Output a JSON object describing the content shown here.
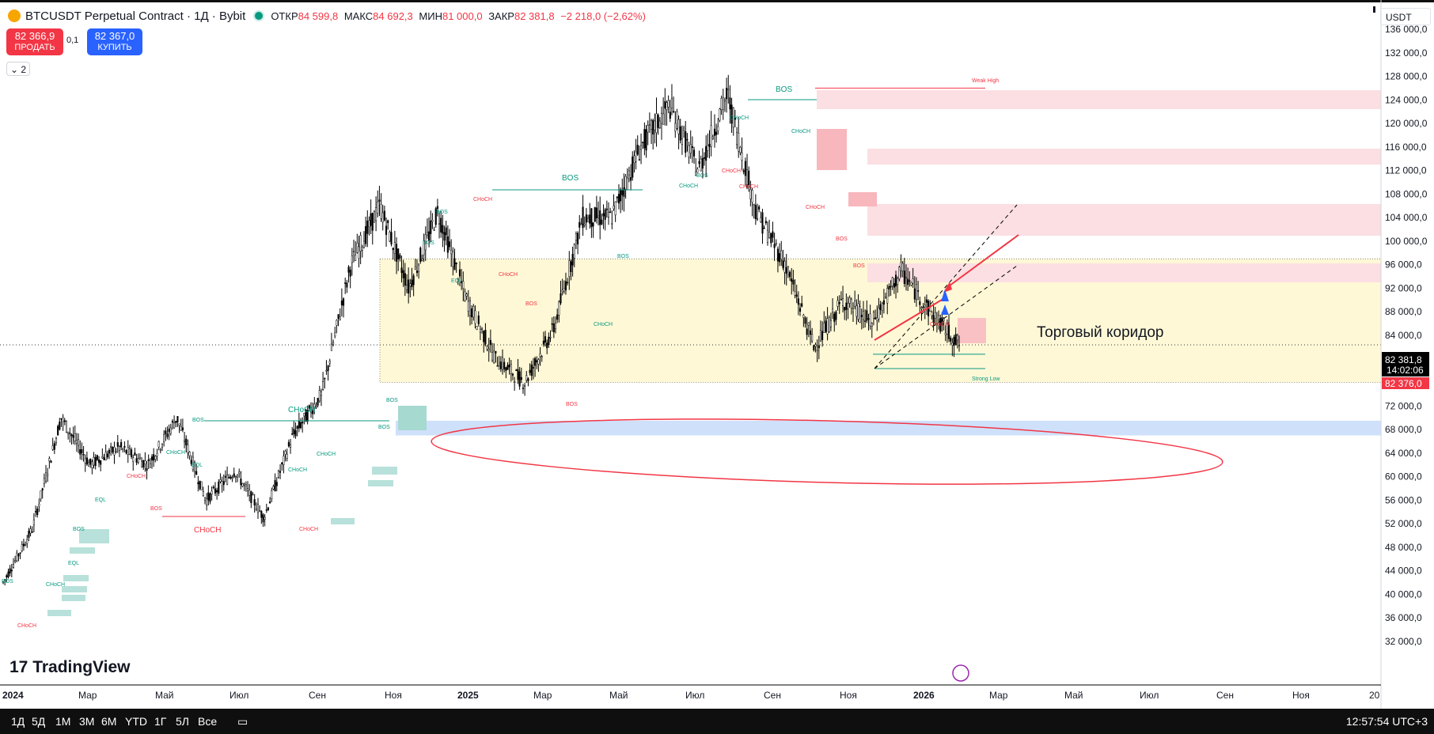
{
  "header": {
    "title": "BTCUSDT Perpetual Contract · 1Д · Bybit",
    "open_label": "ОТКР",
    "open": "84 599,8",
    "high_label": "МАКС",
    "high": "84 692,3",
    "low_label": "МИН",
    "low": "81 000,0",
    "close_label": "ЗАКР",
    "close": "82 381,8",
    "change": "−2 218,0 (−2,62%)"
  },
  "trade": {
    "sell_price": "82 366,9",
    "sell_label": "ПРОДАТЬ",
    "spread": "0,1",
    "buy_price": "82 367,0",
    "buy_label": "КУПИТЬ"
  },
  "indicators": {
    "collapse_count": "2"
  },
  "currency": "USDT",
  "brand": "TradingView",
  "colors": {
    "up": "#089981",
    "down": "#f23645",
    "accent": "#2962ff",
    "corridor": "#fff8d6",
    "supply": "#f7c2c6",
    "demand": "#9fd8ce",
    "blue_zone": "#cfe0fb"
  },
  "bottom_bar": {
    "timeframes": [
      "1Д",
      "5Д",
      "1М",
      "3М",
      "6М",
      "YTD",
      "1Г",
      "5Л",
      "Все"
    ],
    "time": "12:57:54 UTC+3"
  },
  "chart_data": {
    "type": "candlestick",
    "y_axis_labels": [
      "136 000,0",
      "132 000,0",
      "128 000,0",
      "124 000,0",
      "120 000,0",
      "116 000,0",
      "112 000,0",
      "108 000,0",
      "104 000,0",
      "100 000,0",
      "96 000,0",
      "92 000,0",
      "88 000,0",
      "84 000,0",
      "80 000,0",
      "76 000,0",
      "72 000,0",
      "68 000,0",
      "64 000,0",
      "60 000,0",
      "56 000,0",
      "52 000,0",
      "48 000,0",
      "44 000,0",
      "40 000,0",
      "36 000,0",
      "32 000,0"
    ],
    "y_axis_values": [
      136000,
      132000,
      128000,
      124000,
      120000,
      116000,
      112000,
      108000,
      104000,
      100000,
      96000,
      92000,
      88000,
      84000,
      80000,
      76000,
      72000,
      68000,
      64000,
      60000,
      56000,
      52000,
      48000,
      44000,
      40000,
      36000,
      32000
    ],
    "x_axis_labels": [
      "2024",
      "Мар",
      "Май",
      "Июл",
      "Сен",
      "Ноя",
      "2025",
      "Мар",
      "Май",
      "Июл",
      "Сен",
      "Ноя",
      "2026",
      "Мар",
      "Май",
      "Июл",
      "Сен",
      "Ноя",
      "20"
    ],
    "ylim": [
      30000,
      139000
    ],
    "last_price": {
      "label": "82 381,8",
      "countdown": "14:02:06",
      "value": 82381.8
    },
    "bid_price": {
      "label": "82 376,0",
      "value": 82376
    },
    "price_path": [
      [
        "2024-01",
        42000
      ],
      [
        "2024-02",
        51000
      ],
      [
        "2024-03",
        70000
      ],
      [
        "2024-03b",
        62000
      ],
      [
        "2024-04",
        65000
      ],
      [
        "2024-05",
        62000
      ],
      [
        "2024-06",
        70000
      ],
      [
        "2024-07",
        56000
      ],
      [
        "2024-08",
        61000
      ],
      [
        "2024-09",
        53000
      ],
      [
        "2024-10",
        67000
      ],
      [
        "2024-11",
        74000
      ],
      [
        "2024-12",
        96000
      ],
      [
        "2024-12b",
        106000
      ],
      [
        "2025-01",
        92000
      ],
      [
        "2025-01b",
        105000
      ],
      [
        "2025-02",
        90000
      ],
      [
        "2025-03",
        80000
      ],
      [
        "2025-04",
        76000
      ],
      [
        "2025-04b",
        85000
      ],
      [
        "2025-05",
        104000
      ],
      [
        "2025-06",
        104000
      ],
      [
        "2025-07",
        116000
      ],
      [
        "2025-08",
        123000
      ],
      [
        "2025-09",
        112000
      ],
      [
        "2025-10",
        125000
      ],
      [
        "2025-10b",
        105000
      ],
      [
        "2025-11",
        96000
      ],
      [
        "2025-11b",
        82000
      ],
      [
        "2025-12",
        90000
      ],
      [
        "2025-12b",
        86000
      ],
      [
        "2026-01",
        95000
      ],
      [
        "2026-02",
        88000
      ],
      [
        "2026-02b",
        82381
      ]
    ],
    "zones": [
      {
        "name": "Торговый коридор",
        "from": 76000,
        "to": 97000,
        "kind": "corridor"
      },
      {
        "name": "Weak High",
        "from": 124000,
        "to": 126300,
        "kind": "supply"
      },
      {
        "name": "Strong Low",
        "value": 80000,
        "kind": "level"
      },
      {
        "name": "blue-zone",
        "from": 67000,
        "to": 69500,
        "kind": "demand"
      }
    ],
    "annotations": {
      "corridor_label": "Торговый коридор",
      "weak_high": "Weak High",
      "strong_low": "Strong Low",
      "bos": "BOS",
      "choch": "CHoCH",
      "eql": "EQL"
    }
  }
}
